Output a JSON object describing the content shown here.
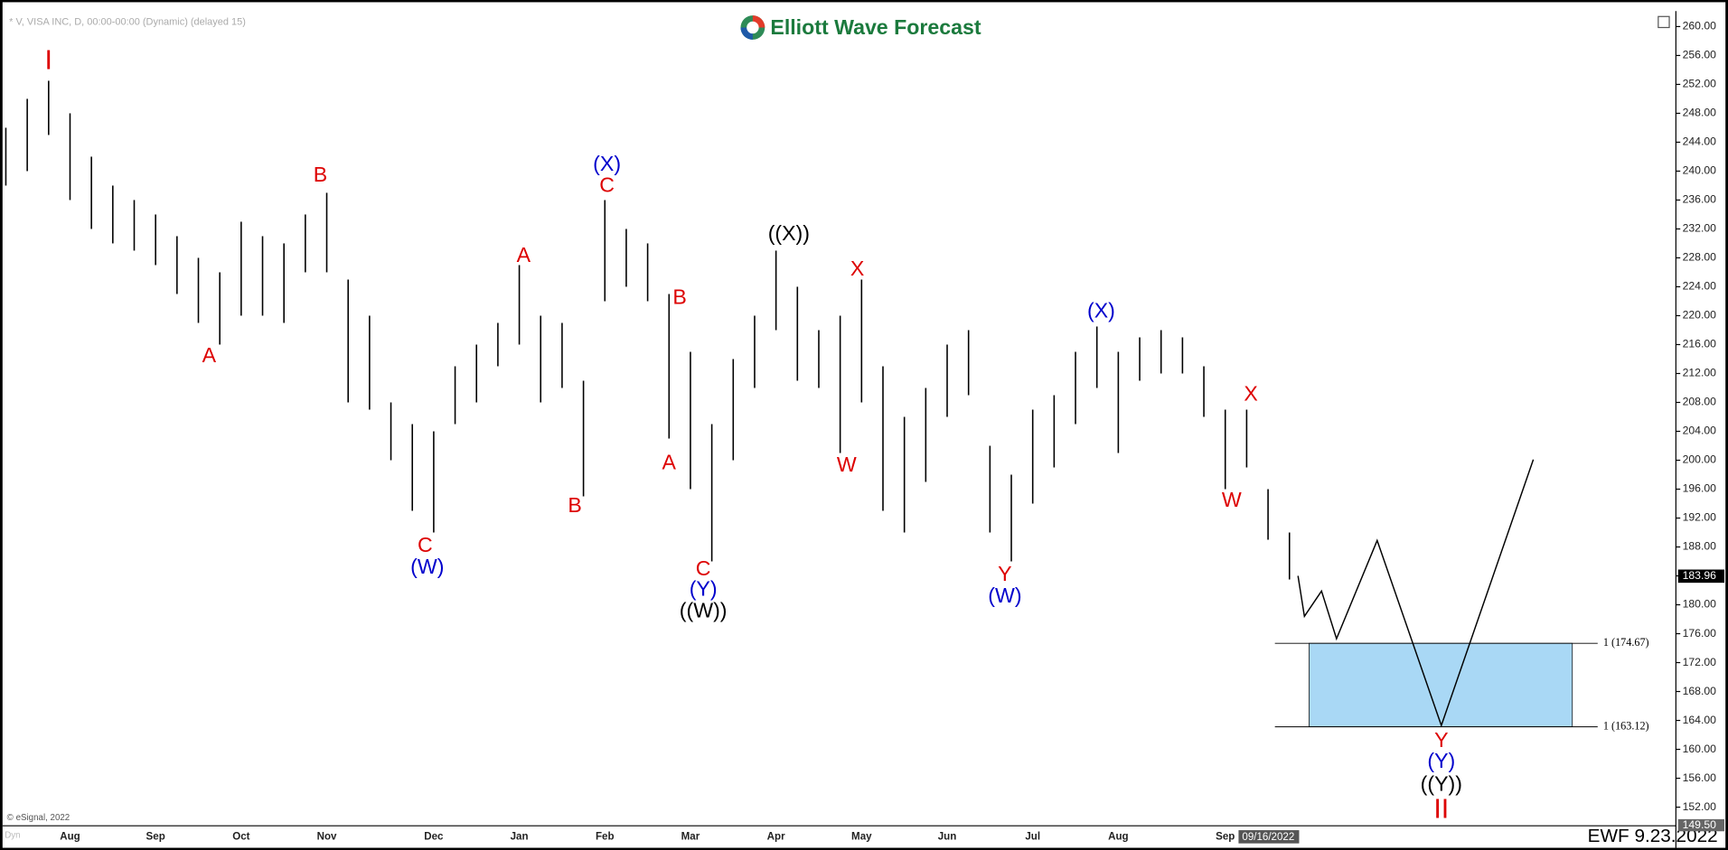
{
  "chart_data": {
    "type": "ohlc",
    "title": "Elliott Wave Forecast",
    "subtitle": "* V, VISA INC, D, 00:00-00:00 (Dynamic) (delayed 15)",
    "credit": "© eSignal, 2022",
    "watermark": "EWF 9.23.2022",
    "corner_label": "Dyn",
    "cursor_date": "09/16/2022",
    "cursor_price": {
      "value": 149.5,
      "label": "149.50"
    },
    "last_price": 183.96,
    "color": "#000000",
    "categories": [
      null,
      null,
      null,
      "Aug",
      null,
      null,
      null,
      "Sep",
      null,
      null,
      null,
      "Oct",
      null,
      null,
      null,
      "Nov",
      null,
      null,
      null,
      null,
      "Dec",
      null,
      null,
      null,
      "Jan",
      null,
      null,
      null,
      "Feb",
      null,
      null,
      null,
      "Mar",
      null,
      null,
      null,
      "Apr",
      null,
      null,
      null,
      "May",
      null,
      null,
      null,
      "Jun",
      null,
      null,
      null,
      "Jul",
      null,
      null,
      null,
      "Aug",
      null,
      null,
      null,
      null,
      "Sep",
      null,
      null,
      null
    ],
    "highs": [
      246,
      250,
      252.5,
      248,
      242,
      238,
      236,
      234,
      231,
      228,
      226,
      233,
      231,
      230,
      234,
      237,
      225,
      220,
      208,
      205,
      204,
      213,
      216,
      219,
      227,
      220,
      219,
      211,
      236,
      232,
      230,
      223,
      215,
      205,
      214,
      220,
      229,
      224,
      218,
      220,
      225,
      213,
      206,
      210,
      216,
      218,
      202,
      198,
      207,
      209,
      215,
      218.5,
      215,
      217,
      218,
      217,
      213,
      207,
      207,
      196,
      190
    ],
    "lows": [
      238,
      240,
      245,
      236,
      232,
      230,
      229,
      227,
      223,
      219,
      216,
      220,
      220,
      219,
      226,
      226,
      208,
      207,
      200,
      193,
      190,
      205,
      208,
      213,
      216,
      208,
      210,
      195,
      222,
      224,
      222,
      203,
      196,
      186,
      200,
      210,
      218,
      211,
      210,
      201,
      208,
      193,
      190,
      197,
      206,
      209,
      190,
      186,
      194,
      199,
      205,
      210,
      201,
      211,
      212,
      212,
      206,
      196,
      199,
      189,
      183.5
    ],
    "ylim": [
      149.5,
      262
    ],
    "yticks": [
      {
        "value": 152,
        "label": "152.00"
      },
      {
        "value": 156,
        "label": "156.00"
      },
      {
        "value": 160,
        "label": "160.00"
      },
      {
        "value": 164,
        "label": "164.00"
      },
      {
        "value": 168,
        "label": "168.00"
      },
      {
        "value": 172,
        "label": "172.00"
      },
      {
        "value": 176,
        "label": "176.00"
      },
      {
        "value": 180,
        "label": "180.00"
      },
      {
        "value": 184,
        "label": "184.00"
      },
      {
        "value": 188,
        "label": "188.00"
      },
      {
        "value": 192,
        "label": "192.00"
      },
      {
        "value": 196,
        "label": "196.00"
      },
      {
        "value": 200,
        "label": "200.00"
      },
      {
        "value": 204,
        "label": "204.00"
      },
      {
        "value": 208,
        "label": "208.00"
      },
      {
        "value": 212,
        "label": "212.00"
      },
      {
        "value": 216,
        "label": "216.00"
      },
      {
        "value": 220,
        "label": "220.00"
      },
      {
        "value": 224,
        "label": "224.00"
      },
      {
        "value": 228,
        "label": "228.00"
      },
      {
        "value": 232,
        "label": "232.00"
      },
      {
        "value": 236,
        "label": "236.00"
      },
      {
        "value": 240,
        "label": "240.00"
      },
      {
        "value": 244,
        "label": "244.00"
      },
      {
        "value": 248,
        "label": "248.00"
      },
      {
        "value": 252,
        "label": "252.00"
      },
      {
        "value": 256,
        "label": "256.00"
      },
      {
        "value": 260,
        "label": "260.00"
      }
    ],
    "projection": {
      "color": "#000000",
      "x": [
        60.4,
        60.7,
        61.5,
        62.2,
        64.1,
        67.1,
        71.4
      ],
      "values": [
        184.0,
        178.4,
        181.9,
        175.3,
        188.9,
        163.3,
        200.1
      ]
    },
    "target_zone": {
      "color": "#a9d8f5",
      "levels": [
        {
          "value": 174.67,
          "label": "1 (174.67)"
        },
        {
          "value": 163.12,
          "label": "1 (163.12)"
        }
      ]
    },
    "annotations": [
      {
        "text": "I",
        "color": "#dd0000",
        "x": 2,
        "y": 255.1,
        "size": "large"
      },
      {
        "text": "A",
        "color": "#dd0000",
        "x": 9.5,
        "y": 214.3
      },
      {
        "text": "B",
        "color": "#dd0000",
        "x": 14.7,
        "y": 239.3
      },
      {
        "text": "C",
        "color": "#dd0000",
        "x": 19.6,
        "y": 188.1
      },
      {
        "text": "(W)",
        "color": "#0000cc",
        "x": 19.7,
        "y": 185.1
      },
      {
        "text": "A",
        "color": "#dd0000",
        "x": 24.2,
        "y": 228.2
      },
      {
        "text": "B",
        "color": "#dd0000",
        "x": 26.6,
        "y": 193.6
      },
      {
        "text": "(X)",
        "color": "#0000cc",
        "x": 28.1,
        "y": 240.8
      },
      {
        "text": "C",
        "color": "#dd0000",
        "x": 28.1,
        "y": 237.9
      },
      {
        "text": "B",
        "color": "#dd0000",
        "x": 31.5,
        "y": 222.4
      },
      {
        "text": "A",
        "color": "#dd0000",
        "x": 31.0,
        "y": 199.5
      },
      {
        "text": "C",
        "color": "#dd0000",
        "x": 32.6,
        "y": 184.8
      },
      {
        "text": "(Y)",
        "color": "#0000cc",
        "x": 32.6,
        "y": 182.0
      },
      {
        "text": "((W))",
        "color": "#000000",
        "x": 32.6,
        "y": 179.0
      },
      {
        "text": "((X))",
        "color": "#000000",
        "x": 36.6,
        "y": 231.2
      },
      {
        "text": "X",
        "color": "#dd0000",
        "x": 39.8,
        "y": 226.3
      },
      {
        "text": "W",
        "color": "#dd0000",
        "x": 39.3,
        "y": 199.2
      },
      {
        "text": "Y",
        "color": "#dd0000",
        "x": 46.7,
        "y": 184.1
      },
      {
        "text": "(W)",
        "color": "#0000cc",
        "x": 46.7,
        "y": 181.1
      },
      {
        "text": "(X)",
        "color": "#0000cc",
        "x": 51.2,
        "y": 220.5
      },
      {
        "text": "X",
        "color": "#dd0000",
        "x": 58.2,
        "y": 209.0
      },
      {
        "text": "W",
        "color": "#dd0000",
        "x": 57.3,
        "y": 194.3
      },
      {
        "text": "Y",
        "color": "#dd0000",
        "x": 67.1,
        "y": 161.1
      },
      {
        "text": "(Y)",
        "color": "#0000cc",
        "x": 67.1,
        "y": 158.2
      },
      {
        "text": "((Y))",
        "color": "#000000",
        "x": 67.1,
        "y": 155.0
      },
      {
        "text": "II",
        "color": "#dd0000",
        "x": 67.1,
        "y": 151.5,
        "size": "large"
      }
    ]
  }
}
